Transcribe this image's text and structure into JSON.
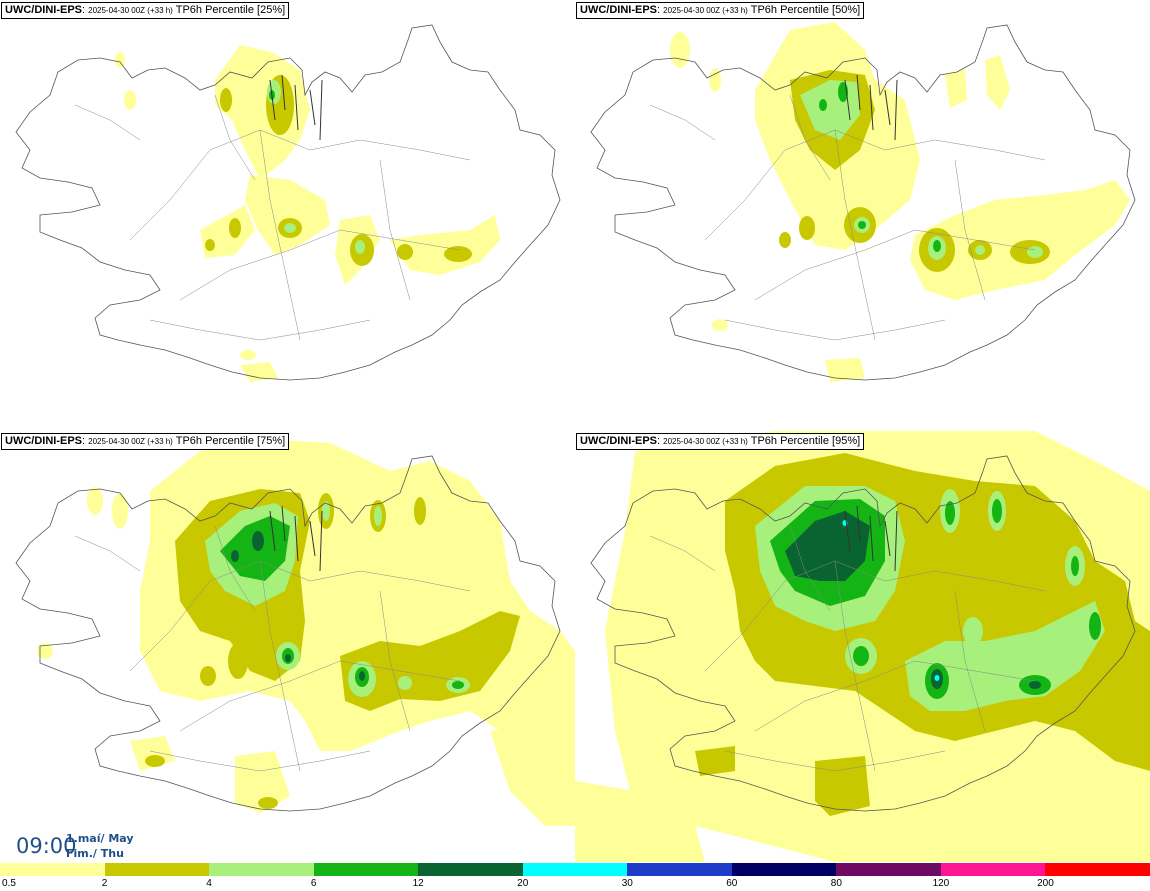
{
  "panels": [
    {
      "model": "UWC/DINI-EPS",
      "run": "2025-04-30 00Z (+33 h)",
      "product": "TP6h Percentile [25%]"
    },
    {
      "model": "UWC/DINI-EPS",
      "run": "2025-04-30 00Z (+33 h)",
      "product": "TP6h Percentile [50%]"
    },
    {
      "model": "UWC/DINI-EPS",
      "run": "2025-04-30 00Z (+33 h)",
      "product": "TP6h Percentile [75%]"
    },
    {
      "model": "UWC/DINI-EPS",
      "run": "2025-04-30 00Z (+33 h)",
      "product": "TP6h Percentile [95%]"
    }
  ],
  "time": {
    "hour": "09:00",
    "date_line1": "1.maí/ May",
    "date_line2": "Fim./ Thu"
  },
  "legend": {
    "colors": [
      "#ffff99",
      "#c8c800",
      "#a8f07c",
      "#14b414",
      "#0a6432",
      "#00ffff",
      "#1e3cc8",
      "#000064",
      "#6e0a64",
      "#ff1493",
      "#ff0000"
    ],
    "ticks": [
      "0.5",
      "2",
      "4",
      "6",
      "12",
      "20",
      "30",
      "60",
      "80",
      "120",
      "200"
    ]
  }
}
